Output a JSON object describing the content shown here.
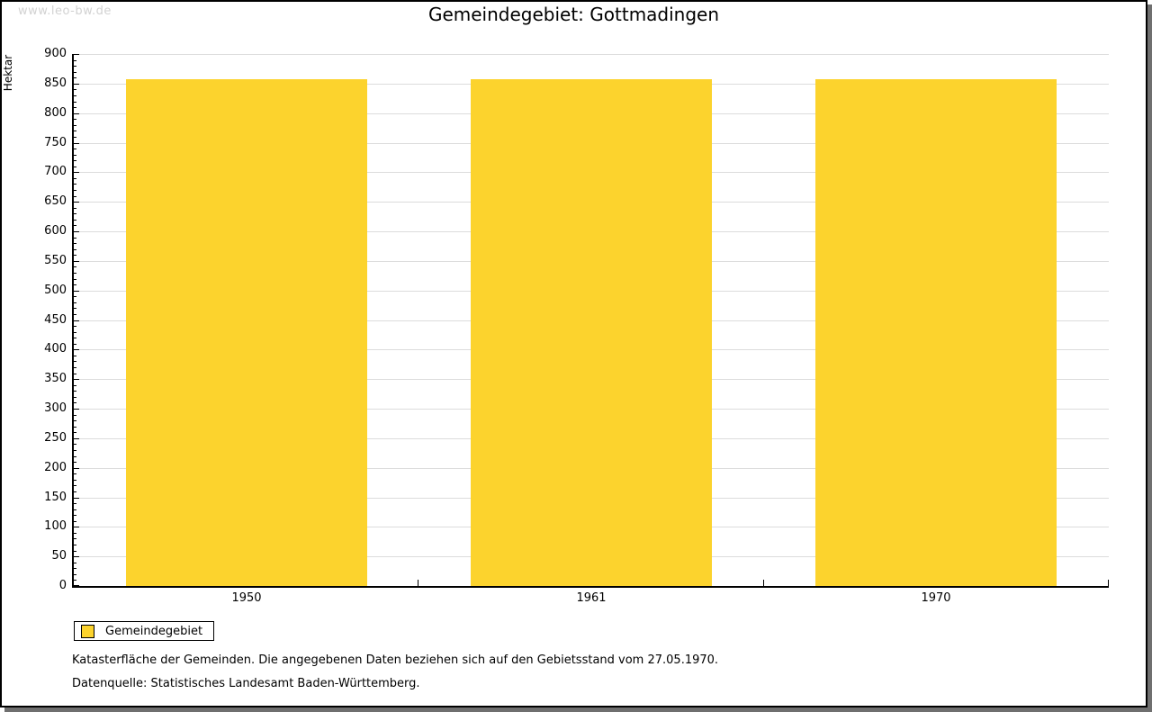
{
  "watermark": "www.leo-bw.de",
  "legend": {
    "label": "Gemeindegebiet"
  },
  "notes": {
    "line1": "Katasterfläche der Gemeinden. Die angegebenen Daten beziehen sich auf den Gebietsstand vom 27.05.1970.",
    "line2": "Datenquelle: Statistisches Landesamt Baden-Württemberg."
  },
  "colors": {
    "bar": "#FCD32D",
    "grid": "#DCDCDC",
    "watermark": "#D2D2D2",
    "frame_shadow": "#6F6F6F"
  },
  "chart_data": {
    "type": "bar",
    "title": "Gemeindegebiet: Gottmadingen",
    "categories": [
      "1950",
      "1961",
      "1970"
    ],
    "values": [
      858,
      858,
      858
    ],
    "series_name": "Gemeindegebiet",
    "xlabel": "",
    "ylabel": "Hektar",
    "ylim": [
      0,
      900
    ],
    "ytick_step": 50,
    "yminor_step": 10,
    "grid": true,
    "gridlines": "horizontal-major",
    "bar_color": "#FCD32D",
    "grid_color": "#DCDCDC",
    "legend_position": "bottom-left"
  }
}
